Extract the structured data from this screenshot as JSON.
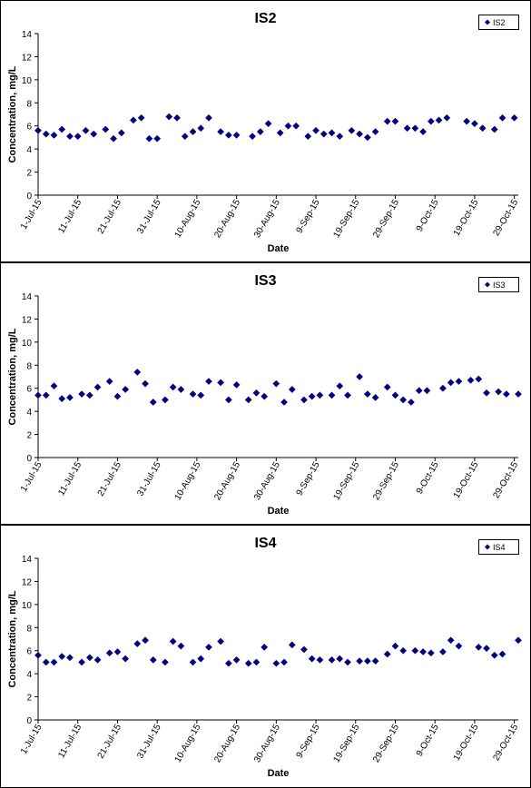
{
  "chart_data": [
    {
      "type": "scatter",
      "title": "IS2",
      "xlabel": "Date",
      "ylabel": "Concentration, mg/L",
      "series": [
        {
          "name": "IS2",
          "x": [
            "2015-07-01",
            "2015-07-03",
            "2015-07-05",
            "2015-07-07",
            "2015-07-09",
            "2015-07-11",
            "2015-07-13",
            "2015-07-15",
            "2015-07-18",
            "2015-07-20",
            "2015-07-22",
            "2015-07-25",
            "2015-07-27",
            "2015-07-29",
            "2015-07-31",
            "2015-08-03",
            "2015-08-05",
            "2015-08-07",
            "2015-08-09",
            "2015-08-11",
            "2015-08-13",
            "2015-08-16",
            "2015-08-18",
            "2015-08-20",
            "2015-08-24",
            "2015-08-26",
            "2015-08-28",
            "2015-08-31",
            "2015-09-02",
            "2015-09-04",
            "2015-09-07",
            "2015-09-09",
            "2015-09-11",
            "2015-09-13",
            "2015-09-15",
            "2015-09-18",
            "2015-09-20",
            "2015-09-22",
            "2015-09-24",
            "2015-09-27",
            "2015-09-29",
            "2015-10-02",
            "2015-10-04",
            "2015-10-06",
            "2015-10-08",
            "2015-10-10",
            "2015-10-12",
            "2015-10-17",
            "2015-10-19",
            "2015-10-21",
            "2015-10-24",
            "2015-10-26",
            "2015-10-29"
          ],
          "y": [
            5.6,
            5.3,
            5.2,
            5.7,
            5.1,
            5.1,
            5.6,
            5.3,
            5.7,
            4.9,
            5.4,
            6.5,
            6.7,
            4.9,
            4.9,
            6.8,
            6.7,
            5.1,
            5.5,
            5.8,
            6.7,
            5.5,
            5.2,
            5.2,
            5.1,
            5.5,
            6.2,
            5.4,
            6.0,
            6.0,
            5.1,
            5.6,
            5.3,
            5.4,
            5.1,
            5.6,
            5.3,
            5.0,
            5.5,
            6.4,
            6.4,
            5.8,
            5.8,
            5.5,
            6.4,
            6.5,
            6.7,
            6.4,
            6.2,
            5.8,
            5.7,
            6.7,
            6.7
          ]
        }
      ],
      "ylim": [
        0,
        14
      ],
      "yticks": [
        0,
        2,
        4,
        6,
        8,
        10,
        12,
        14
      ],
      "xticks": [
        "1-Jul-15",
        "11-Jul-15",
        "21-Jul-15",
        "31-Jul-15",
        "10-Aug-15",
        "20-Aug-15",
        "30-Aug-15",
        "9-Sep-15",
        "19-Sep-15",
        "29-Sep-15",
        "9-Oct-15",
        "19-Oct-15",
        "29-Oct-15"
      ],
      "legend": "top-right",
      "grid": false,
      "marker_color": "#000080"
    },
    {
      "type": "scatter",
      "title": "IS3",
      "xlabel": "Date",
      "ylabel": "Concentration, mg/L",
      "series": [
        {
          "name": "IS3",
          "x": [
            "2015-07-01",
            "2015-07-03",
            "2015-07-05",
            "2015-07-07",
            "2015-07-09",
            "2015-07-12",
            "2015-07-14",
            "2015-07-16",
            "2015-07-19",
            "2015-07-21",
            "2015-07-23",
            "2015-07-26",
            "2015-07-28",
            "2015-07-30",
            "2015-08-02",
            "2015-08-04",
            "2015-08-06",
            "2015-08-09",
            "2015-08-11",
            "2015-08-13",
            "2015-08-16",
            "2015-08-18",
            "2015-08-20",
            "2015-08-23",
            "2015-08-25",
            "2015-08-27",
            "2015-08-30",
            "2015-09-01",
            "2015-09-03",
            "2015-09-06",
            "2015-09-08",
            "2015-09-10",
            "2015-09-13",
            "2015-09-15",
            "2015-09-17",
            "2015-09-20",
            "2015-09-22",
            "2015-09-24",
            "2015-09-27",
            "2015-09-29",
            "2015-10-01",
            "2015-10-03",
            "2015-10-05",
            "2015-10-07",
            "2015-10-11",
            "2015-10-13",
            "2015-10-15",
            "2015-10-18",
            "2015-10-20",
            "2015-10-22",
            "2015-10-25",
            "2015-10-27",
            "2015-10-30"
          ],
          "y": [
            5.4,
            5.4,
            6.2,
            5.1,
            5.2,
            5.5,
            5.4,
            6.1,
            6.6,
            5.3,
            5.9,
            7.4,
            6.4,
            4.8,
            5.0,
            6.1,
            5.9,
            5.5,
            5.4,
            6.6,
            6.5,
            5.0,
            6.3,
            5.0,
            5.6,
            5.3,
            6.4,
            4.8,
            5.9,
            5.0,
            5.3,
            5.4,
            5.4,
            6.2,
            5.4,
            7.0,
            5.5,
            5.2,
            6.1,
            5.4,
            5.0,
            4.8,
            5.8,
            5.8,
            6.0,
            6.5,
            6.6,
            6.7,
            6.8,
            5.6,
            5.7,
            5.5,
            5.5
          ]
        }
      ],
      "ylim": [
        0,
        14
      ],
      "yticks": [
        0,
        2,
        4,
        6,
        8,
        10,
        12,
        14
      ],
      "xticks": [
        "1-Jul-15",
        "11-Jul-15",
        "21-Jul-15",
        "31-Jul-15",
        "10-Aug-15",
        "20-Aug-15",
        "30-Aug-15",
        "9-Sep-15",
        "19-Sep-15",
        "29-Sep-15",
        "9-Oct-15",
        "19-Oct-15",
        "29-Oct-15"
      ],
      "legend": "top-right",
      "grid": false,
      "marker_color": "#000080"
    },
    {
      "type": "scatter",
      "title": "IS4",
      "xlabel": "Date",
      "ylabel": "Concentration, mg/L",
      "series": [
        {
          "name": "IS4",
          "x": [
            "2015-07-01",
            "2015-07-03",
            "2015-07-05",
            "2015-07-07",
            "2015-07-09",
            "2015-07-12",
            "2015-07-14",
            "2015-07-16",
            "2015-07-19",
            "2015-07-21",
            "2015-07-23",
            "2015-07-26",
            "2015-07-28",
            "2015-07-30",
            "2015-08-02",
            "2015-08-04",
            "2015-08-06",
            "2015-08-09",
            "2015-08-11",
            "2015-08-13",
            "2015-08-16",
            "2015-08-18",
            "2015-08-20",
            "2015-08-23",
            "2015-08-25",
            "2015-08-27",
            "2015-08-30",
            "2015-09-01",
            "2015-09-03",
            "2015-09-06",
            "2015-09-08",
            "2015-09-10",
            "2015-09-13",
            "2015-09-15",
            "2015-09-17",
            "2015-09-20",
            "2015-09-22",
            "2015-09-24",
            "2015-09-27",
            "2015-09-29",
            "2015-10-01",
            "2015-10-04",
            "2015-10-06",
            "2015-10-08",
            "2015-10-11",
            "2015-10-13",
            "2015-10-15",
            "2015-10-20",
            "2015-10-22",
            "2015-10-24",
            "2015-10-26",
            "2015-10-30"
          ],
          "y": [
            5.6,
            5.0,
            5.0,
            5.5,
            5.4,
            5.0,
            5.4,
            5.2,
            5.8,
            5.9,
            5.3,
            6.6,
            6.9,
            5.2,
            5.0,
            6.8,
            6.4,
            5.0,
            5.3,
            6.3,
            6.8,
            4.9,
            5.2,
            4.9,
            5.0,
            6.3,
            4.9,
            5.0,
            6.5,
            6.1,
            5.3,
            5.2,
            5.2,
            5.3,
            5.0,
            5.1,
            5.1,
            5.1,
            5.7,
            6.4,
            6.0,
            6.0,
            5.9,
            5.8,
            5.9,
            6.9,
            6.4,
            6.3,
            6.2,
            5.6,
            5.7,
            6.9
          ]
        }
      ],
      "ylim": [
        0,
        14
      ],
      "yticks": [
        0,
        2,
        4,
        6,
        8,
        10,
        12,
        14
      ],
      "xticks": [
        "1-Jul-15",
        "11-Jul-15",
        "21-Jul-15",
        "31-Jul-15",
        "10-Aug-15",
        "20-Aug-15",
        "30-Aug-15",
        "9-Sep-15",
        "19-Sep-15",
        "29-Sep-15",
        "9-Oct-15",
        "19-Oct-15",
        "29-Oct-15"
      ],
      "legend": "top-right",
      "grid": false,
      "marker_color": "#000080"
    }
  ]
}
